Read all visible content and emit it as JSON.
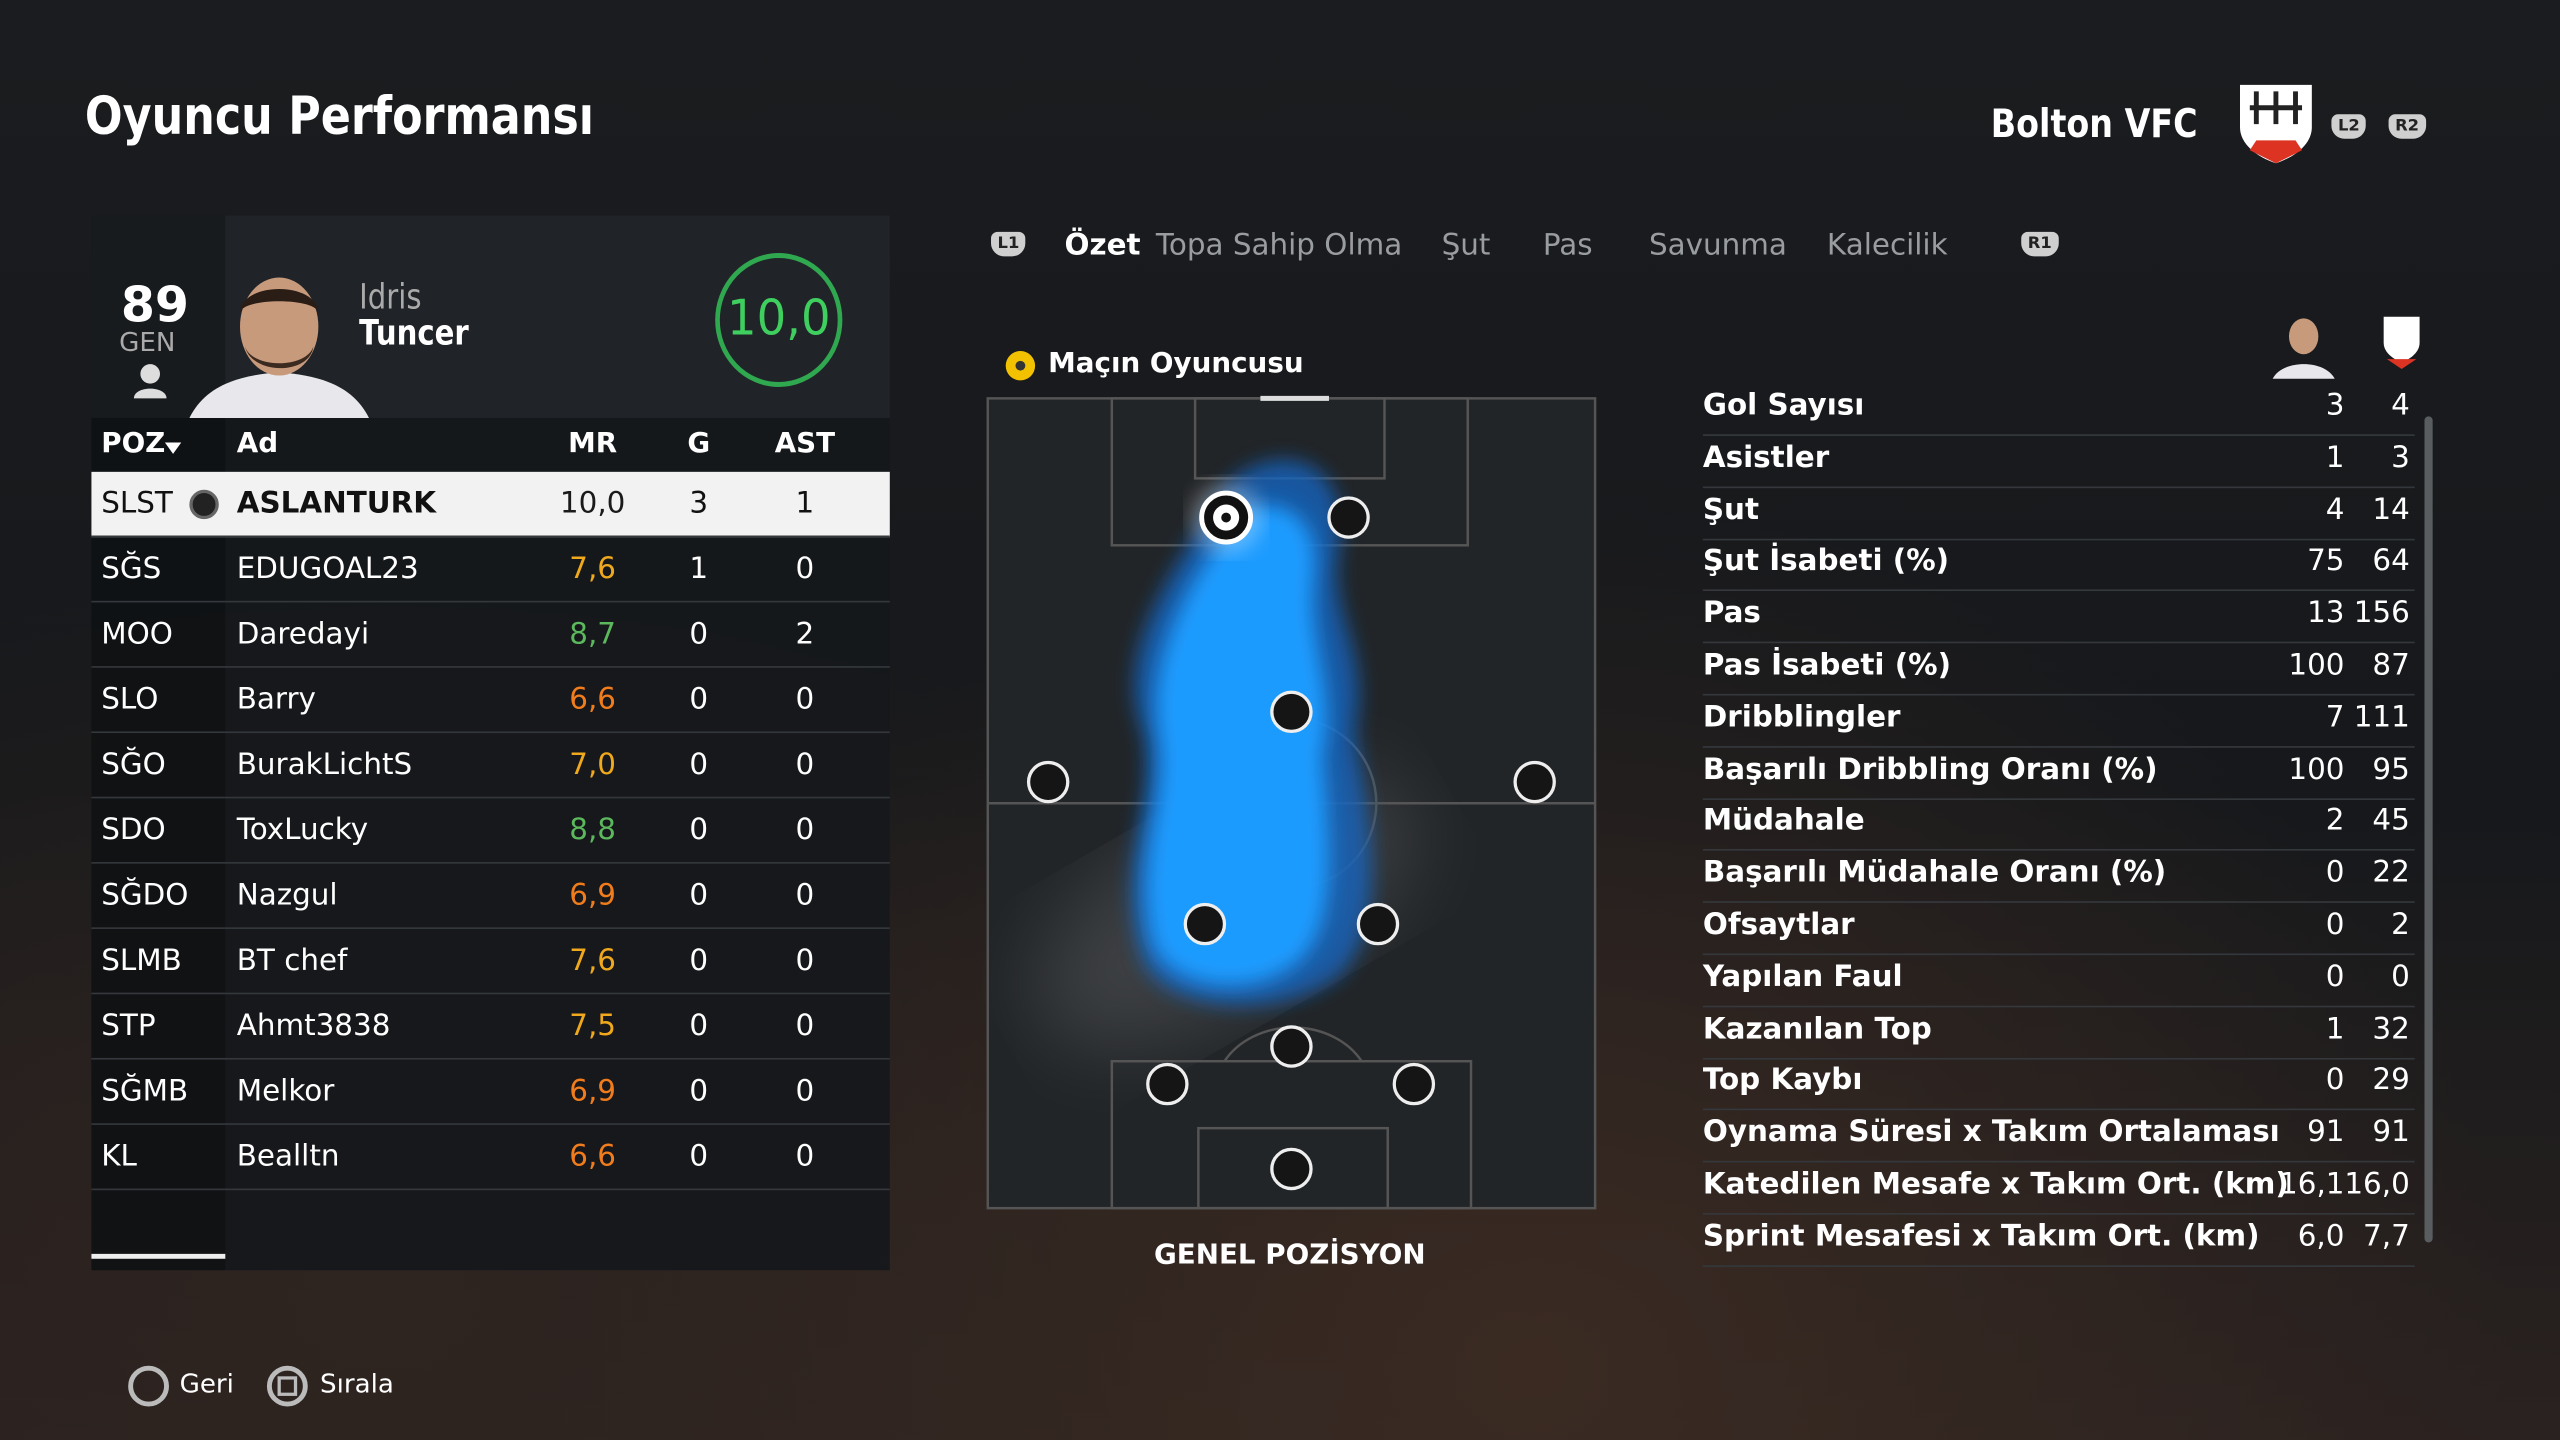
{
  "header": {
    "title": "Oyuncu Performansı",
    "team": "Bolton VFC",
    "buttons": [
      "L2",
      "R2"
    ]
  },
  "card": {
    "overall": "89",
    "overall_label": "GEN",
    "first_name": "Idris",
    "last_name": "Tuncer",
    "rating": "10,0"
  },
  "table": {
    "columns": [
      "POZ",
      "Ad",
      "MR",
      "G",
      "AST"
    ],
    "rows": [
      {
        "pos": "SLST",
        "name": "ASLANTURK",
        "mr": "10,0",
        "g": "3",
        "ast": "1",
        "color": "#1a1a1a"
      },
      {
        "pos": "SĞS",
        "name": "EDUGOAL23",
        "mr": "7,6",
        "g": "1",
        "ast": "0",
        "color": "#f0a81c"
      },
      {
        "pos": "MOO",
        "name": "Daredayi",
        "mr": "8,7",
        "g": "0",
        "ast": "2",
        "color": "#5cb85c"
      },
      {
        "pos": "SLO",
        "name": "Barry",
        "mr": "6,6",
        "g": "0",
        "ast": "0",
        "color": "#f07c1c"
      },
      {
        "pos": "SĞO",
        "name": "BurakLichtS",
        "mr": "7,0",
        "g": "0",
        "ast": "0",
        "color": "#f0a81c"
      },
      {
        "pos": "SDO",
        "name": "ToxLucky",
        "mr": "8,8",
        "g": "0",
        "ast": "0",
        "color": "#5cb85c"
      },
      {
        "pos": "SĞDO",
        "name": "Nazgul",
        "mr": "6,9",
        "g": "0",
        "ast": "0",
        "color": "#f07c1c"
      },
      {
        "pos": "SLMB",
        "name": "BT chef",
        "mr": "7,6",
        "g": "0",
        "ast": "0",
        "color": "#f0a81c"
      },
      {
        "pos": "STP",
        "name": "Ahmt3838",
        "mr": "7,5",
        "g": "0",
        "ast": "0",
        "color": "#f0a81c"
      },
      {
        "pos": "SĞMB",
        "name": "Melkor",
        "mr": "6,9",
        "g": "0",
        "ast": "0",
        "color": "#f07c1c"
      },
      {
        "pos": "KL",
        "name": "Bealltn",
        "mr": "6,6",
        "g": "0",
        "ast": "0",
        "color": "#f07c1c"
      }
    ]
  },
  "tabs": {
    "left_button": "L1",
    "items": [
      "Özet",
      "Topa Sahip Olma",
      "Şut",
      "Pas",
      "Savunma",
      "Kalecilik"
    ],
    "right_button": "R1",
    "active": 0
  },
  "motm": "Maçın Oyuncusu",
  "pitch_caption": "GENEL POZİSYON",
  "stats": [
    {
      "label": "Gol Sayısı",
      "player": "3",
      "team": "4"
    },
    {
      "label": "Asistler",
      "player": "1",
      "team": "3"
    },
    {
      "label": "Şut",
      "player": "4",
      "team": "14"
    },
    {
      "label": "Şut İsabeti (%)",
      "player": "75",
      "team": "64"
    },
    {
      "label": "Pas",
      "player": "13",
      "team": "156"
    },
    {
      "label": "Pas İsabeti (%)",
      "player": "100",
      "team": "87"
    },
    {
      "label": "Dribblingler",
      "player": "7",
      "team": "111"
    },
    {
      "label": "Başarılı Dribbling Oranı (%)",
      "player": "100",
      "team": "95"
    },
    {
      "label": "Müdahale",
      "player": "2",
      "team": "45"
    },
    {
      "label": "Başarılı Müdahale Oranı (%)",
      "player": "0",
      "team": "22"
    },
    {
      "label": "Ofsaytlar",
      "player": "0",
      "team": "2"
    },
    {
      "label": "Yapılan Faul",
      "player": "0",
      "team": "0"
    },
    {
      "label": "Kazanılan Top",
      "player": "1",
      "team": "32"
    },
    {
      "label": "Top Kaybı",
      "player": "0",
      "team": "29"
    },
    {
      "label": "Oynama Süresi x Takım Ortalaması",
      "player": "91",
      "team": "91"
    },
    {
      "label": "Katedilen Mesafe x Takım Ort. (km)",
      "player": "16,1",
      "team": "16,0"
    },
    {
      "label": "Sprint Mesafesi x Takım Ort. (km)",
      "player": "6,0",
      "team": "7,7"
    }
  ],
  "footer": {
    "back": "Geri",
    "sort": "Sırala"
  }
}
